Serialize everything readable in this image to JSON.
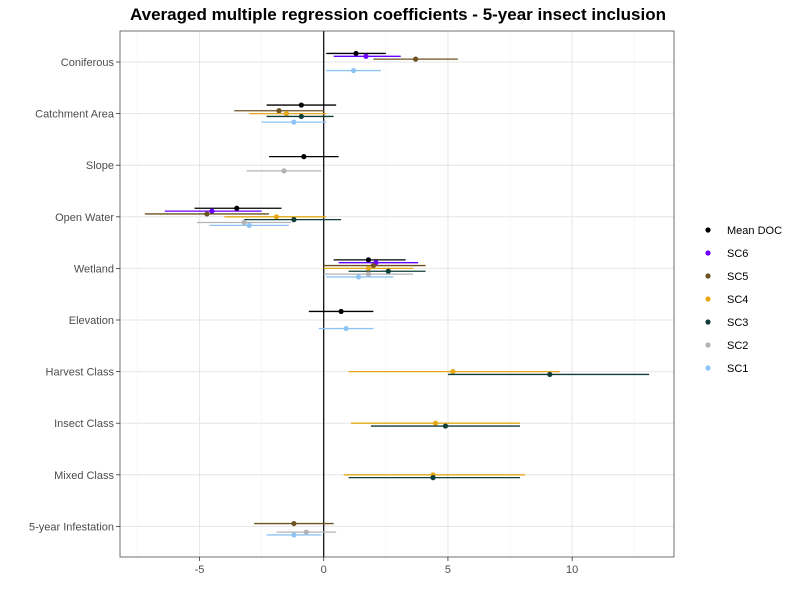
{
  "chart_data": {
    "type": "scatter",
    "title": "Averaged multiple regression coefficients - 5-year insect inclusion",
    "xlabel": "",
    "ylabel": "",
    "xlim": [
      -8.2,
      14.1
    ],
    "x_ticks": [
      -5,
      0,
      5,
      10
    ],
    "x_tick_labels": [
      "-5",
      "0",
      "5",
      "10"
    ],
    "zero_line": 0,
    "grid": true,
    "legend_position": "right",
    "categories": [
      "Coniferous",
      "Catchment Area",
      "Slope",
      "Open Water",
      "Wetland",
      "Elevation",
      "Harvest Class",
      "Insect Class",
      "Mixed Class",
      "5-year Infestation"
    ],
    "series": [
      {
        "name": "Mean DOC",
        "color": "#000000",
        "points": [
          {
            "category": "Coniferous",
            "estimate": 1.3,
            "low": 0.1,
            "high": 2.5
          },
          {
            "category": "Catchment Area",
            "estimate": -0.9,
            "low": -2.3,
            "high": 0.5
          },
          {
            "category": "Slope",
            "estimate": -0.8,
            "low": -2.2,
            "high": 0.6
          },
          {
            "category": "Open Water",
            "estimate": -3.5,
            "low": -5.2,
            "high": -1.7
          },
          {
            "category": "Wetland",
            "estimate": 1.8,
            "low": 0.4,
            "high": 3.3
          },
          {
            "category": "Elevation",
            "estimate": 0.7,
            "low": -0.6,
            "high": 2.0
          }
        ]
      },
      {
        "name": "SC6",
        "color": "#6a00ff",
        "points": [
          {
            "category": "Coniferous",
            "estimate": 1.7,
            "low": 0.4,
            "high": 3.1
          },
          {
            "category": "Open Water",
            "estimate": -4.5,
            "low": -6.4,
            "high": -2.5
          },
          {
            "category": "Wetland",
            "estimate": 2.1,
            "low": 0.6,
            "high": 3.8
          }
        ]
      },
      {
        "name": "SC5",
        "color": "#6b5220",
        "points": [
          {
            "category": "Coniferous",
            "estimate": 3.7,
            "low": 2.0,
            "high": 5.4
          },
          {
            "category": "Catchment Area",
            "estimate": -1.8,
            "low": -3.6,
            "high": 0.0
          },
          {
            "category": "Open Water",
            "estimate": -4.7,
            "low": -7.2,
            "high": -2.2
          },
          {
            "category": "Wetland",
            "estimate": 2.0,
            "low": 0.0,
            "high": 4.1
          },
          {
            "category": "5-year Infestation",
            "estimate": -1.2,
            "low": -2.8,
            "high": 0.4
          }
        ]
      },
      {
        "name": "SC4",
        "color": "#e6a817",
        "points": [
          {
            "category": "Catchment Area",
            "estimate": -1.5,
            "low": -3.0,
            "high": 0.1
          },
          {
            "category": "Open Water",
            "estimate": -1.9,
            "low": -4.0,
            "high": 0.1
          },
          {
            "category": "Wetland",
            "estimate": 1.8,
            "low": 0.0,
            "high": 3.6
          },
          {
            "category": "Harvest Class",
            "estimate": 5.2,
            "low": 1.0,
            "high": 9.5
          },
          {
            "category": "Insect Class",
            "estimate": 4.5,
            "low": 1.1,
            "high": 7.9
          },
          {
            "category": "Mixed Class",
            "estimate": 4.4,
            "low": 0.8,
            "high": 8.1
          }
        ]
      },
      {
        "name": "SC3",
        "color": "#0f3d3a",
        "points": [
          {
            "category": "Catchment Area",
            "estimate": -0.9,
            "low": -2.3,
            "high": 0.4
          },
          {
            "category": "Open Water",
            "estimate": -1.2,
            "low": -3.2,
            "high": 0.7
          },
          {
            "category": "Wetland",
            "estimate": 2.6,
            "low": 1.0,
            "high": 4.1
          },
          {
            "category": "Harvest Class",
            "estimate": 9.1,
            "low": 5.0,
            "high": 13.1
          },
          {
            "category": "Insect Class",
            "estimate": 4.9,
            "low": 1.9,
            "high": 7.9
          },
          {
            "category": "Mixed Class",
            "estimate": 4.4,
            "low": 1.0,
            "high": 7.9
          }
        ]
      },
      {
        "name": "SC2",
        "color": "#b3b3b3",
        "points": [
          {
            "category": "Slope",
            "estimate": -1.6,
            "low": -3.1,
            "high": -0.1
          },
          {
            "category": "Open Water",
            "estimate": -3.2,
            "low": -5.1,
            "high": -1.3
          },
          {
            "category": "Wetland",
            "estimate": 1.8,
            "low": 0.0,
            "high": 3.6
          },
          {
            "category": "5-year Infestation",
            "estimate": -0.7,
            "low": -1.9,
            "high": 0.5
          }
        ]
      },
      {
        "name": "SC1",
        "color": "#8ec3f5",
        "points": [
          {
            "category": "Coniferous",
            "estimate": 1.2,
            "low": 0.1,
            "high": 2.3
          },
          {
            "category": "Catchment Area",
            "estimate": -1.2,
            "low": -2.5,
            "high": 0.1
          },
          {
            "category": "Open Water",
            "estimate": -3.0,
            "low": -4.6,
            "high": -1.4
          },
          {
            "category": "Wetland",
            "estimate": 1.4,
            "low": 0.1,
            "high": 2.8
          },
          {
            "category": "Elevation",
            "estimate": 0.9,
            "low": -0.2,
            "high": 2.0
          },
          {
            "category": "5-year Infestation",
            "estimate": -1.2,
            "low": -2.3,
            "high": -0.1
          }
        ]
      }
    ]
  }
}
